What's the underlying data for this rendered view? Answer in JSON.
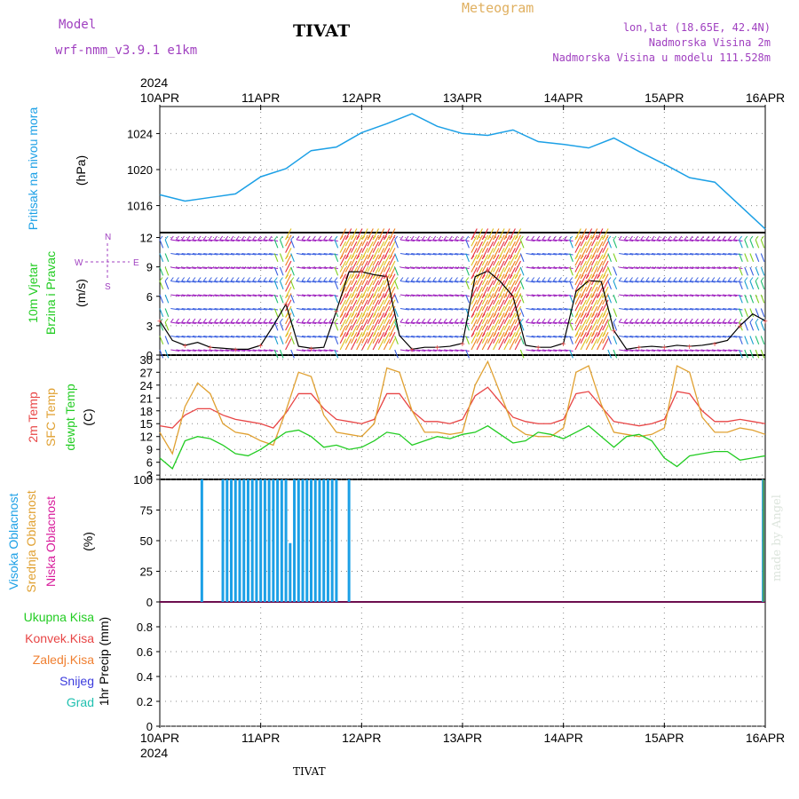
{
  "header": {
    "model_label": "Model",
    "model_name": "wrf-nmm_v3.9.1  e1km",
    "city": "TIVAT",
    "title": "Meteogram",
    "coords": "lon,lat (18.65E, 42.4N)",
    "elevation": "Nadmorska Visina 2m",
    "model_elevation": "Nadmorska Visina u modelu 111.528m",
    "footer_city": "TIVAT",
    "watermark": "made by Angel"
  },
  "colors": {
    "pressure": "#1ca0e6",
    "t2m": "#e84545",
    "sfc": "#e0a030",
    "dewpoint": "#22cc22",
    "cloud_high": "#1ca0e6",
    "cloud_mid": "#e0a030",
    "cloud_low": "#d81b9b",
    "precip_total": "#22cc22",
    "precip_conv": "#e84545",
    "precip_frz": "#f07f30",
    "snow": "#3b3bdd",
    "hail": "#20c0b0",
    "title": "#e0b060",
    "purple": "#a040c0"
  },
  "chart_data": [
    {
      "type": "line",
      "title": "Pritisak na nivou mora",
      "ylabel": "(hPa)",
      "ylim": [
        1013,
        1027
      ],
      "yticks": [
        1016,
        1020,
        1024
      ],
      "x_ticks": [
        "10APR",
        "11APR",
        "12APR",
        "13APR",
        "14APR",
        "15APR",
        "16APR"
      ],
      "x_year": "2024",
      "x_hours": [
        0,
        6,
        12,
        18,
        24,
        30,
        36,
        42,
        48,
        54,
        60,
        66,
        72,
        78,
        84,
        90,
        96,
        102,
        108,
        114,
        120,
        126,
        132,
        138,
        144
      ],
      "series": [
        {
          "name": "Pritisak na nivou mora",
          "values": [
            1017.2,
            1016.5,
            1016.9,
            1017.3,
            1019.2,
            1020.1,
            1022.1,
            1022.5,
            1024.1,
            1025.1,
            1026.2,
            1024.8,
            1024.0,
            1023.8,
            1024.4,
            1023.1,
            1022.8,
            1022.4,
            1023.5,
            1022.0,
            1020.6,
            1019.1,
            1018.6,
            1016.0,
            1013.4
          ]
        }
      ]
    },
    {
      "type": "line",
      "title": "10m Vjetar Brzina i Pravac",
      "ylabel": "(m/s)",
      "ylim": [
        0,
        12.5
      ],
      "yticks": [
        0,
        3,
        6,
        9,
        12
      ],
      "compass": {
        "n": "N",
        "s": "S",
        "e": "E",
        "w": "W"
      },
      "x_hours": [
        0,
        3,
        6,
        9,
        12,
        15,
        18,
        21,
        24,
        27,
        30,
        33,
        36,
        39,
        42,
        45,
        48,
        51,
        54,
        57,
        60,
        63,
        66,
        69,
        72,
        75,
        78,
        81,
        84,
        87,
        90,
        93,
        96,
        99,
        102,
        105,
        108,
        111,
        114,
        117,
        120,
        123,
        126,
        129,
        132,
        135,
        138,
        141,
        144
      ],
      "series": [
        {
          "name": "10m wind speed",
          "values": [
            3.5,
            1.5,
            1.0,
            1.3,
            0.8,
            0.7,
            0.6,
            0.6,
            1.0,
            3.0,
            5.2,
            0.9,
            0.7,
            0.8,
            4.5,
            8.5,
            8.5,
            8.2,
            8.0,
            2.0,
            0.6,
            0.8,
            0.8,
            0.9,
            1.2,
            8.0,
            8.6,
            7.5,
            6.0,
            1.0,
            0.8,
            0.8,
            1.2,
            6.5,
            7.6,
            7.5,
            2.5,
            0.6,
            0.8,
            0.9,
            0.8,
            1.0,
            0.9,
            1.0,
            1.2,
            1.5,
            3.0,
            4.2,
            3.5
          ]
        }
      ]
    },
    {
      "type": "line",
      "ylabel": "(C)",
      "ylim": [
        2,
        31
      ],
      "yticks": [
        3,
        6,
        9,
        12,
        15,
        18,
        21,
        24,
        27,
        30
      ],
      "x_hours": [
        0,
        3,
        6,
        9,
        12,
        15,
        18,
        21,
        24,
        27,
        30,
        33,
        36,
        39,
        42,
        45,
        48,
        51,
        54,
        57,
        60,
        63,
        66,
        69,
        72,
        75,
        78,
        81,
        84,
        87,
        90,
        93,
        96,
        99,
        102,
        105,
        108,
        111,
        114,
        117,
        120,
        123,
        126,
        129,
        132,
        135,
        138,
        141,
        144
      ],
      "series": [
        {
          "name": "2m Temp",
          "values": [
            14.5,
            14.0,
            17.0,
            18.5,
            18.5,
            17.0,
            16.0,
            15.5,
            15.0,
            14.0,
            17.5,
            22.0,
            22.0,
            18.5,
            16.0,
            15.5,
            15.0,
            16.0,
            22.0,
            22.0,
            18.0,
            15.5,
            15.5,
            15.0,
            16.0,
            21.5,
            23.5,
            20.0,
            16.5,
            15.5,
            15.0,
            15.0,
            16.0,
            22.0,
            22.5,
            19.0,
            15.5,
            15.0,
            14.5,
            15.0,
            16.0,
            22.5,
            22.0,
            18.0,
            15.5,
            15.5,
            16.0,
            15.5,
            15.0
          ]
        },
        {
          "name": "SFC Temp",
          "values": [
            13.0,
            8.0,
            19.0,
            24.5,
            22.0,
            15.0,
            13.0,
            12.5,
            11.0,
            10.0,
            18.0,
            27.0,
            26.0,
            17.0,
            13.0,
            12.5,
            12.0,
            15.0,
            28.0,
            27.0,
            18.0,
            13.0,
            13.0,
            12.5,
            13.0,
            24.0,
            29.5,
            22.0,
            14.5,
            12.5,
            12.0,
            12.0,
            14.0,
            27.0,
            28.5,
            19.5,
            13.0,
            12.5,
            12.0,
            12.5,
            14.0,
            28.5,
            27.0,
            16.5,
            13.0,
            13.0,
            14.0,
            13.5,
            12.5
          ]
        },
        {
          "name": "dewpt Temp",
          "values": [
            7.0,
            4.5,
            11.0,
            12.0,
            11.5,
            10.0,
            8.0,
            7.5,
            9.0,
            11.0,
            13.0,
            13.5,
            12.0,
            9.5,
            10.0,
            9.0,
            9.5,
            11.0,
            13.0,
            12.5,
            10.0,
            11.0,
            12.0,
            11.5,
            12.5,
            13.0,
            14.5,
            12.5,
            10.5,
            11.0,
            13.0,
            12.5,
            11.5,
            13.0,
            14.5,
            12.0,
            9.5,
            12.0,
            12.5,
            11.0,
            7.0,
            5.0,
            7.5,
            8.0,
            8.5,
            8.5,
            6.5,
            7.0,
            7.5
          ]
        }
      ]
    },
    {
      "type": "bar",
      "ylabel": "(%)",
      "ylim": [
        0,
        100
      ],
      "yticks": [
        0,
        25,
        50,
        75,
        100
      ],
      "series": [
        {
          "name": "Visoka Oblacnost",
          "x_hours": [
            10,
            15,
            16,
            17,
            18,
            19,
            20,
            21,
            22,
            23,
            24,
            25,
            26,
            27,
            28,
            29,
            30,
            31,
            32,
            33,
            34,
            35,
            36,
            37,
            38,
            39,
            40,
            41,
            42,
            45,
            143.5
          ],
          "values": [
            100,
            100,
            100,
            100,
            100,
            100,
            100,
            100,
            100,
            100,
            100,
            100,
            100,
            100,
            100,
            100,
            100,
            48,
            100,
            100,
            100,
            100,
            100,
            100,
            100,
            100,
            100,
            100,
            100,
            100,
            100
          ]
        },
        {
          "name": "Srednja Oblacnost",
          "x_hours": [
            143.6
          ],
          "values": [
            100
          ]
        },
        {
          "name": "Niska Oblacnost",
          "x_hours": [],
          "values": []
        }
      ]
    },
    {
      "type": "bar",
      "ylabel": "1hr Precip (mm)",
      "ylim": [
        0,
        1.0
      ],
      "yticks": [
        0,
        0.2,
        0.4,
        0.6,
        0.8
      ],
      "series": [
        {
          "name": "Ukupna Kisa",
          "values": []
        },
        {
          "name": "Konvek.Kisa",
          "values": []
        },
        {
          "name": "Zaledj.Kisa",
          "values": []
        },
        {
          "name": "Snijeg",
          "values": []
        },
        {
          "name": "Grad",
          "values": []
        }
      ]
    }
  ]
}
